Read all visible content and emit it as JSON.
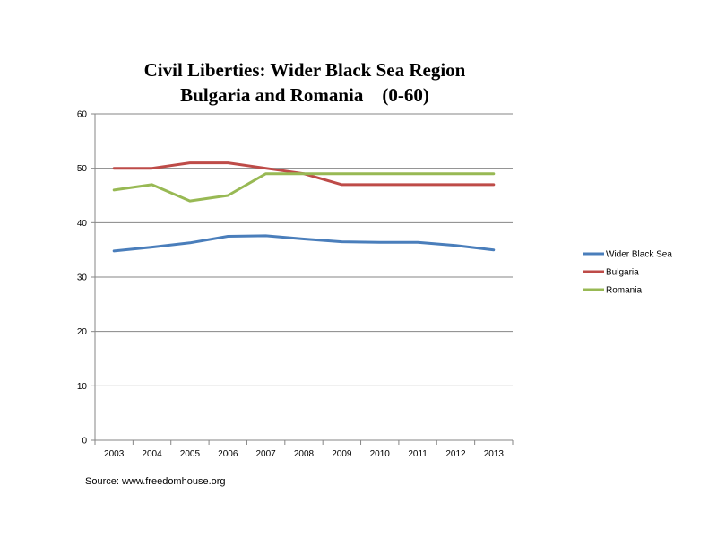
{
  "chart_data": {
    "type": "line",
    "title_line1": "Civil Liberties: Wider Black Sea Region",
    "title_line2": "Bulgaria and Romania    (0-60)",
    "xlabel": "",
    "ylabel": "",
    "categories": [
      "2003",
      "2004",
      "2005",
      "2006",
      "2007",
      "2008",
      "2009",
      "2010",
      "2011",
      "2012",
      "2013"
    ],
    "ylim": [
      0,
      60
    ],
    "yticks": [
      0,
      10,
      20,
      30,
      40,
      50,
      60
    ],
    "grid": true,
    "legend_position": "right",
    "series": [
      {
        "name": "Wider Black Sea",
        "color": "#4a7ebb",
        "values": [
          34.8,
          35.5,
          36.3,
          37.5,
          37.6,
          37.0,
          36.5,
          36.4,
          36.4,
          35.8,
          35.0
        ]
      },
      {
        "name": "Bulgaria",
        "color": "#be4b48",
        "values": [
          50,
          50,
          51,
          51,
          50,
          49,
          47,
          47,
          47,
          47,
          47
        ]
      },
      {
        "name": "Romania",
        "color": "#98b954",
        "values": [
          46,
          47,
          44,
          45,
          49,
          49,
          49,
          49,
          49,
          49,
          49
        ]
      }
    ],
    "source": "Source: www.freedomhouse.org"
  }
}
